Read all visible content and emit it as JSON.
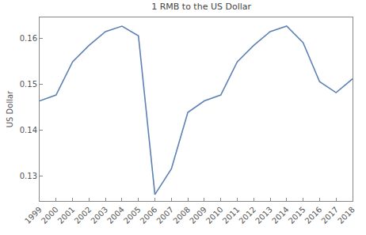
{
  "chart_data": {
    "type": "line",
    "title": "1 RMB to the US Dollar",
    "y_label": "US Dollar",
    "x": [
      1999,
      2000,
      2001,
      2002,
      2003,
      2004,
      2005,
      2006,
      2007,
      2008,
      2009,
      2010,
      2011,
      2012,
      2013,
      2014,
      2015,
      2016,
      2017,
      2018
    ],
    "values": [
      0.1463,
      0.1476,
      0.1548,
      0.1584,
      0.1614,
      0.1626,
      0.1605,
      0.1259,
      0.1315,
      0.1438,
      0.1463,
      0.1476,
      0.1548,
      0.1584,
      0.1614,
      0.1626,
      0.159,
      0.1505,
      0.1481,
      0.1511
    ],
    "color": "#5e81b5",
    "xlim": [
      1999,
      2018
    ],
    "xticks": [
      1999,
      2000,
      2001,
      2002,
      2003,
      2004,
      2005,
      2006,
      2007,
      2008,
      2009,
      2010,
      2011,
      2012,
      2013,
      2014,
      2015,
      2016,
      2017,
      2018
    ],
    "ylim": [
      0.1245,
      0.1645
    ],
    "yticks": [
      0.13,
      0.14,
      0.15,
      0.16
    ],
    "grid": false
  }
}
